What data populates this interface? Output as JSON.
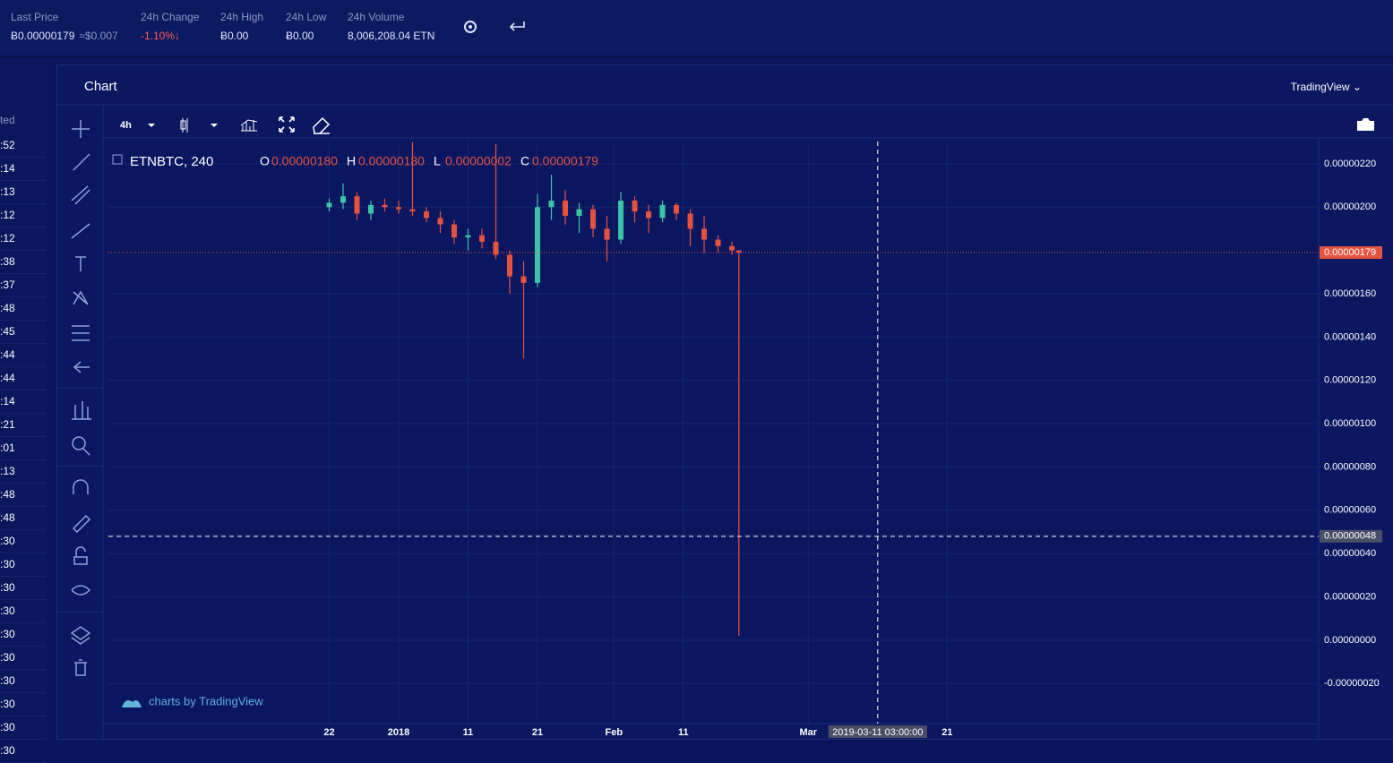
{
  "header": {
    "stats": [
      {
        "label": "Last Price",
        "value": "Ƀ0.00000179",
        "extra": "≈$0.007"
      },
      {
        "label": "24h Change",
        "value": "-1.10%↓"
      },
      {
        "label": "24h High",
        "value": "Ƀ0.00"
      },
      {
        "label": "24h Low",
        "value": "Ƀ0.00"
      },
      {
        "label": "24h Volume",
        "value": "8,006,208.04 ETN"
      }
    ]
  },
  "side_list": {
    "header": "ted",
    "rows": [
      ":52",
      ":14",
      ":13",
      ":12",
      ":12",
      ":38",
      ":37",
      ":48",
      ":45",
      ":44",
      ":44",
      ":14",
      ":21",
      ":01",
      ":13",
      ":48",
      ":48",
      ":30",
      ":30",
      ":30",
      ":30",
      ":30",
      ":30",
      ":30",
      ":30",
      ":30",
      ":30"
    ]
  },
  "panel": {
    "title": "Chart",
    "provider": "TradingView ⌄",
    "interval": "4h",
    "watermark": "charts by TradingView"
  },
  "chart_data": {
    "type": "candlestick",
    "symbol": "ETNBTC, 240",
    "legend": [
      {
        "key": "O",
        "value": "0.00000180"
      },
      {
        "key": "H",
        "value": "0.00000180"
      },
      {
        "key": "L",
        "value": "0.00000002"
      },
      {
        "key": "C",
        "value": "0.00000179"
      }
    ],
    "up_color": "#3cc4a6",
    "down_color": "#e4533f",
    "grid": true,
    "x": [
      -10,
      -8,
      -6,
      -4,
      -2,
      0,
      2,
      4,
      6,
      8,
      10,
      12,
      14,
      16,
      18,
      20,
      22,
      24,
      26,
      28,
      30,
      32,
      34,
      36,
      38,
      40,
      42,
      44,
      46,
      48,
      49
    ],
    "open": [
      2e-06,
      2.02e-06,
      2.05e-06,
      1.97e-06,
      2.01e-06,
      2e-06,
      1.99e-06,
      1.98e-06,
      1.95e-06,
      1.92e-06,
      1.86e-06,
      1.87e-06,
      1.84e-06,
      1.78e-06,
      1.68e-06,
      1.65e-06,
      2e-06,
      2.03e-06,
      1.96e-06,
      1.99e-06,
      1.9e-06,
      1.85e-06,
      2.03e-06,
      1.98e-06,
      1.95e-06,
      2.01e-06,
      1.97e-06,
      1.9e-06,
      1.85e-06,
      1.82e-06,
      1.8e-06
    ],
    "high": [
      2.04e-06,
      2.11e-06,
      2.07e-06,
      2.03e-06,
      2.04e-06,
      2.03e-06,
      2.3e-06,
      2e-06,
      1.98e-06,
      1.94e-06,
      1.9e-06,
      1.9e-06,
      2.29e-06,
      1.8e-06,
      1.75e-06,
      2.06e-06,
      2.15e-06,
      2.08e-06,
      2.02e-06,
      2.01e-06,
      1.96e-06,
      2.07e-06,
      2.05e-06,
      2.01e-06,
      2.03e-06,
      2.02e-06,
      1.99e-06,
      1.96e-06,
      1.87e-06,
      1.84e-06,
      1.8e-06
    ],
    "low": [
      1.98e-06,
      1.99e-06,
      1.94e-06,
      1.94e-06,
      1.98e-06,
      1.97e-06,
      1.96e-06,
      1.93e-06,
      1.88e-06,
      1.83e-06,
      1.8e-06,
      1.81e-06,
      1.76e-06,
      1.6e-06,
      1.3e-06,
      1.63e-06,
      1.94e-06,
      1.92e-06,
      1.88e-06,
      1.86e-06,
      1.75e-06,
      1.83e-06,
      1.93e-06,
      1.88e-06,
      1.93e-06,
      1.94e-06,
      1.82e-06,
      1.79e-06,
      1.79e-06,
      1.78e-06,
      2e-08
    ],
    "close": [
      2.02e-06,
      2.05e-06,
      1.97e-06,
      2.01e-06,
      2e-06,
      1.99e-06,
      1.98e-06,
      1.95e-06,
      1.92e-06,
      1.86e-06,
      1.87e-06,
      1.84e-06,
      1.78e-06,
      1.68e-06,
      1.65e-06,
      2e-06,
      2.03e-06,
      1.96e-06,
      1.99e-06,
      1.9e-06,
      1.85e-06,
      2.03e-06,
      1.98e-06,
      1.95e-06,
      2.01e-06,
      1.97e-06,
      1.9e-06,
      1.85e-06,
      1.82e-06,
      1.8e-06,
      1.79e-06
    ],
    "ylim": [
      -3.85e-07,
      2.303e-06
    ],
    "yticks": [
      {
        "value": 2.2e-06,
        "label": "0.00000220"
      },
      {
        "value": 2e-06,
        "label": "0.00000200"
      },
      {
        "value": 1.6e-06,
        "label": "0.00000160"
      },
      {
        "value": 1.4e-06,
        "label": "0.00000140"
      },
      {
        "value": 1.2e-06,
        "label": "0.00000120"
      },
      {
        "value": 1e-06,
        "label": "0.00000100"
      },
      {
        "value": 8e-07,
        "label": "0.00000080"
      },
      {
        "value": 6e-07,
        "label": "0.00000060"
      },
      {
        "value": 4e-07,
        "label": "0.00000040"
      },
      {
        "value": 2e-07,
        "label": "0.00000020"
      },
      {
        "value": 0,
        "label": "0.00000000"
      },
      {
        "value": -2e-07,
        "label": "-0.00000020"
      }
    ],
    "xlim": [
      -41.8,
      132.5
    ],
    "xticks": [
      {
        "value": -10,
        "label": "22"
      },
      {
        "value": 0,
        "label": "2018"
      },
      {
        "value": 10,
        "label": "11"
      },
      {
        "value": 20,
        "label": "21"
      },
      {
        "value": 31,
        "label": "Feb"
      },
      {
        "value": 41,
        "label": "11"
      },
      {
        "value": 59,
        "label": "Mar"
      },
      {
        "value": 79,
        "label": "21"
      }
    ],
    "last_price": {
      "value": 1.79e-06,
      "label": "0.00000179"
    },
    "crosshair": {
      "x": 69,
      "time_label": "2019-03-11 03:00:00",
      "price": {
        "value": 4.8e-07,
        "label": "0.00000048"
      }
    }
  }
}
